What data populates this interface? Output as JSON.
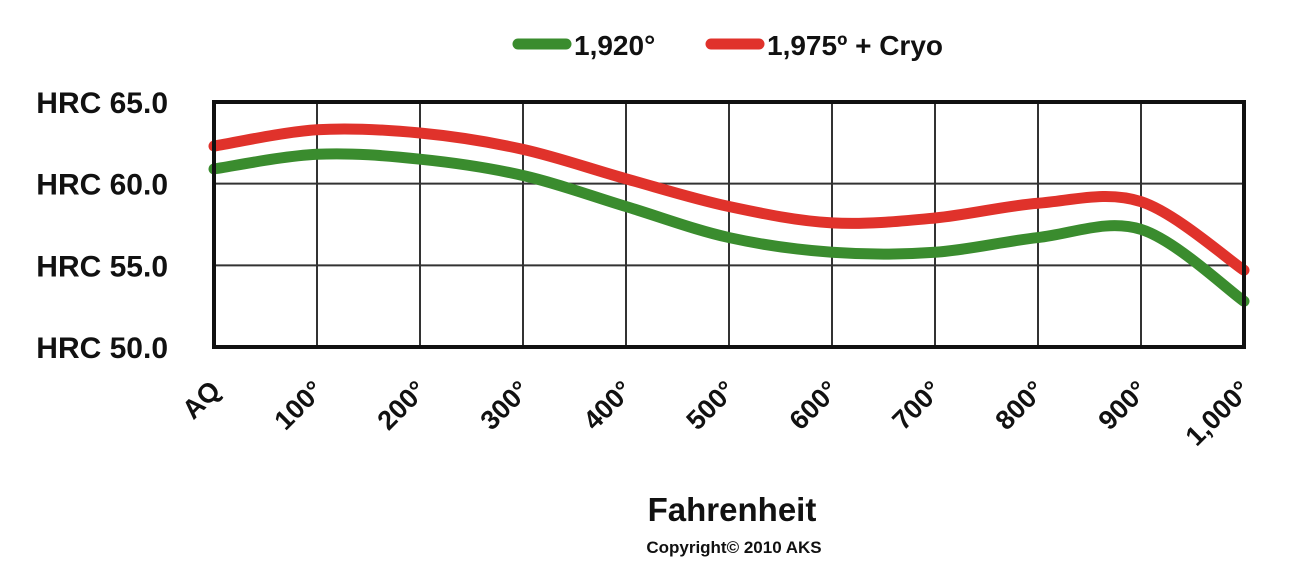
{
  "chart_data": {
    "type": "line",
    "x": [
      "AQ",
      "100°",
      "200°",
      "300°",
      "400°",
      "500°",
      "600°",
      "700°",
      "800°",
      "900°",
      "1,000°"
    ],
    "xlabel": "Fahrenheit",
    "ylim": [
      50,
      65
    ],
    "yticks": [
      65,
      60,
      55,
      50
    ],
    "ytick_labels": [
      "HRC 65.0",
      "HRC 60.0",
      "HRC 55.0",
      "HRC 50.0"
    ],
    "grid": true,
    "legend_position": "top-center",
    "series": [
      {
        "name": "1,920°",
        "color": "#3a8c2e",
        "values": [
          60.9,
          61.8,
          61.5,
          60.5,
          58.6,
          56.7,
          55.8,
          55.8,
          56.7,
          57.2,
          52.8
        ]
      },
      {
        "name": "1,975º + Cryo",
        "color": "#e0322b",
        "values": [
          62.3,
          63.3,
          63.1,
          62.1,
          60.3,
          58.6,
          57.6,
          57.9,
          58.8,
          58.9,
          54.7
        ]
      }
    ],
    "copyright": "Copyright© 2010 AKS"
  }
}
